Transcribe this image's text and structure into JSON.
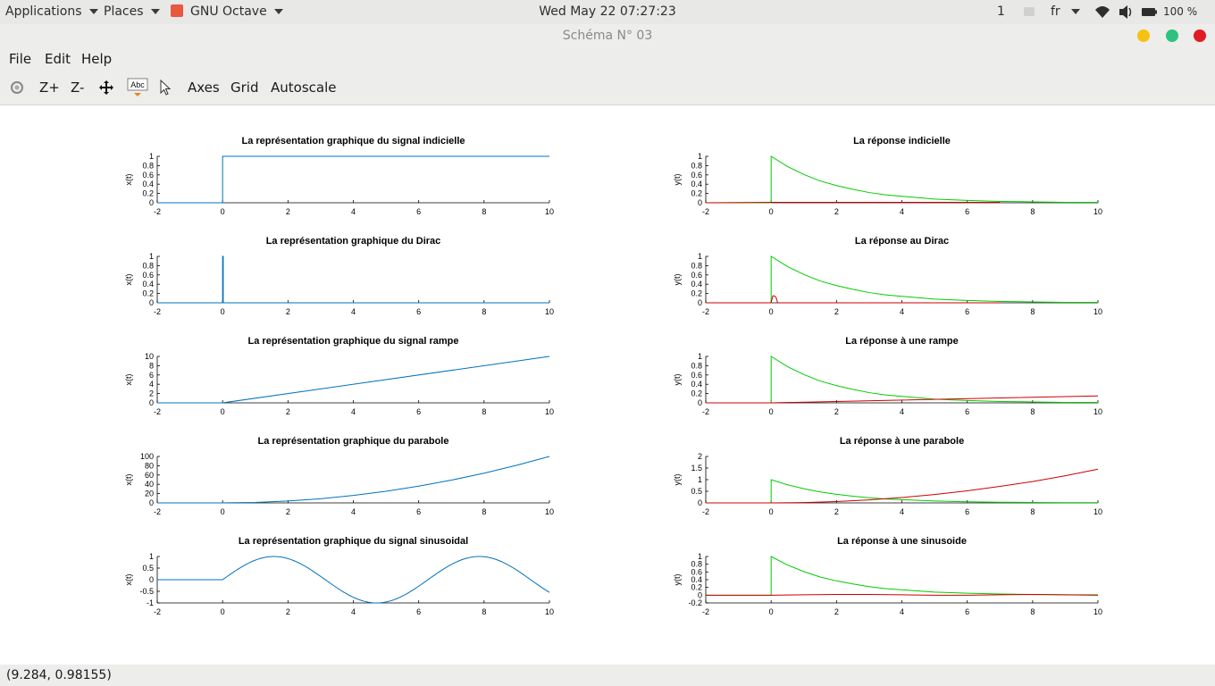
{
  "topbar": {
    "applications": "Applications",
    "places": "Places",
    "app_name": "GNU Octave",
    "app_icon": "octave-icon",
    "clock": "Wed May 22  07:27:23",
    "workspace": "1",
    "language": "fr",
    "battery": "100 %"
  },
  "window": {
    "title": "Schéma N° 03"
  },
  "menu": {
    "file": "File",
    "edit": "Edit",
    "help": "Help"
  },
  "toolbar": {
    "rotate_icon": "rotate-icon",
    "zoom_in": "Z+",
    "zoom_out": "Z-",
    "pan_icon": "pan-icon",
    "text_icon_label": "Abc",
    "select_icon": "pointer-icon",
    "axes": "Axes",
    "grid": "Grid",
    "autoscale": "Autoscale"
  },
  "status": {
    "coords": "(9.284, 0.98155)"
  },
  "colors": {
    "signal": "#0072bd",
    "response_green": "#00cc00",
    "response_red": "#cc0000",
    "overlap": "#999900"
  },
  "chart_data": [
    {
      "type": "line",
      "title": "La représentation graphique du signal indicielle",
      "xlabel": "",
      "ylabel": "x(t)",
      "xlim": [
        -2,
        10
      ],
      "ylim": [
        0,
        1
      ],
      "xticks": [
        "-2",
        "0",
        "2",
        "4",
        "6",
        "8",
        "10"
      ],
      "yticks": [
        "0",
        "0.2",
        "0.4",
        "0.6",
        "0.8",
        "1"
      ],
      "series": [
        {
          "color": "#0072bd",
          "x": [
            -2,
            0,
            0,
            10
          ],
          "y": [
            0,
            0,
            1,
            1
          ]
        }
      ]
    },
    {
      "type": "line",
      "title": "La réponse indicielle",
      "xlabel": "",
      "ylabel": "y(t)",
      "xlim": [
        -2,
        10
      ],
      "ylim": [
        0,
        1
      ],
      "xticks": [
        "-2",
        "0",
        "2",
        "4",
        "6",
        "8",
        "10"
      ],
      "yticks": [
        "0",
        "0.2",
        "0.4",
        "0.6",
        "0.8",
        "1"
      ],
      "series": [
        {
          "color": "#00cc00",
          "x": [
            -2,
            0,
            0,
            0.5,
            1,
            1.5,
            2,
            2.5,
            3,
            3.5,
            4,
            5,
            6,
            7,
            8,
            9,
            10
          ],
          "y": [
            0,
            0,
            1,
            0.78,
            0.61,
            0.47,
            0.37,
            0.29,
            0.22,
            0.17,
            0.14,
            0.08,
            0.05,
            0.03,
            0.02,
            0.01,
            0.01
          ]
        },
        {
          "color": "#cc0000",
          "x": [
            -2,
            0,
            7
          ],
          "y": [
            0,
            0.01,
            0.01
          ]
        }
      ]
    },
    {
      "type": "line",
      "title": "La représentation graphique du Dirac",
      "xlabel": "",
      "ylabel": "x(t)",
      "xlim": [
        -2,
        10
      ],
      "ylim": [
        0,
        1
      ],
      "xticks": [
        "-2",
        "0",
        "2",
        "4",
        "6",
        "8",
        "10"
      ],
      "yticks": [
        "0",
        "0.2",
        "0.4",
        "0.6",
        "0.8",
        "1"
      ],
      "series": [
        {
          "color": "#0072bd",
          "x": [
            -2,
            0,
            0,
            0.02,
            0.02,
            10
          ],
          "y": [
            0,
            0,
            1,
            1,
            0,
            0
          ]
        }
      ]
    },
    {
      "type": "line",
      "title": "La réponse au Dirac",
      "xlabel": "",
      "ylabel": "y(t)",
      "xlim": [
        -2,
        10
      ],
      "ylim": [
        0,
        1
      ],
      "xticks": [
        "-2",
        "0",
        "2",
        "4",
        "6",
        "8",
        "10"
      ],
      "yticks": [
        "0",
        "0.2",
        "0.4",
        "0.6",
        "0.8",
        "1"
      ],
      "series": [
        {
          "color": "#00cc00",
          "x": [
            -2,
            0,
            0,
            0.5,
            1,
            1.5,
            2,
            2.5,
            3,
            3.5,
            4,
            5,
            6,
            7,
            8,
            9,
            10
          ],
          "y": [
            0,
            0,
            1,
            0.78,
            0.61,
            0.47,
            0.37,
            0.29,
            0.22,
            0.17,
            0.14,
            0.08,
            0.05,
            0.03,
            0.02,
            0.01,
            0.01
          ]
        },
        {
          "color": "#cc0000",
          "x": [
            -2,
            0,
            0.05,
            0.1,
            0.15,
            0.2,
            7
          ],
          "y": [
            0,
            0,
            0.15,
            0.15,
            0.12,
            0,
            0
          ]
        }
      ]
    },
    {
      "type": "line",
      "title": "La représentation graphique du signal rampe",
      "xlabel": "",
      "ylabel": "x(t)",
      "xlim": [
        -2,
        10
      ],
      "ylim": [
        0,
        10
      ],
      "xticks": [
        "-2",
        "0",
        "2",
        "4",
        "6",
        "8",
        "10"
      ],
      "yticks": [
        "0",
        "2",
        "4",
        "6",
        "8",
        "10"
      ],
      "series": [
        {
          "color": "#0072bd",
          "x": [
            -2,
            0,
            10
          ],
          "y": [
            0,
            0,
            10
          ]
        }
      ]
    },
    {
      "type": "line",
      "title": "La réponse à une rampe",
      "xlabel": "",
      "ylabel": "y(t)",
      "xlim": [
        -2,
        10
      ],
      "ylim": [
        0,
        1
      ],
      "xticks": [
        "-2",
        "0",
        "2",
        "4",
        "6",
        "8",
        "10"
      ],
      "yticks": [
        "0",
        "0.2",
        "0.4",
        "0.6",
        "0.8",
        "1"
      ],
      "series": [
        {
          "color": "#00cc00",
          "x": [
            -2,
            0,
            0,
            0.5,
            1,
            1.5,
            2,
            2.5,
            3,
            3.5,
            4,
            5,
            6,
            7,
            8,
            9,
            10
          ],
          "y": [
            0,
            0,
            1,
            0.78,
            0.61,
            0.47,
            0.37,
            0.29,
            0.22,
            0.17,
            0.14,
            0.08,
            0.05,
            0.03,
            0.02,
            0.01,
            0.01
          ]
        },
        {
          "color": "#cc0000",
          "x": [
            -2,
            0,
            10
          ],
          "y": [
            0,
            0,
            0.15
          ]
        }
      ]
    },
    {
      "type": "line",
      "title": "La représentation graphique du parabole",
      "xlabel": "",
      "ylabel": "x(t)",
      "xlim": [
        -2,
        10
      ],
      "ylim": [
        0,
        100
      ],
      "xticks": [
        "-2",
        "0",
        "2",
        "4",
        "6",
        "8",
        "10"
      ],
      "yticks": [
        "0",
        "20",
        "40",
        "60",
        "80",
        "100"
      ],
      "series": [
        {
          "color": "#0072bd",
          "x": [
            -2,
            0,
            1,
            2,
            3,
            4,
            5,
            6,
            7,
            8,
            9,
            10
          ],
          "y": [
            0,
            0,
            1,
            4,
            9,
            16,
            25,
            36,
            49,
            64,
            81,
            100
          ]
        }
      ]
    },
    {
      "type": "line",
      "title": "La réponse à une parabole",
      "xlabel": "",
      "ylabel": "y(t)",
      "xlim": [
        -2,
        10
      ],
      "ylim": [
        0,
        2
      ],
      "xticks": [
        "-2",
        "0",
        "2",
        "4",
        "6",
        "8",
        "10"
      ],
      "yticks": [
        "0",
        "0.5",
        "1",
        "1.5",
        "2"
      ],
      "series": [
        {
          "color": "#00cc00",
          "x": [
            -2,
            0,
            0,
            0.5,
            1,
            1.5,
            2,
            2.5,
            3,
            3.5,
            4,
            5,
            6,
            7,
            8,
            9,
            10
          ],
          "y": [
            0,
            0,
            1,
            0.78,
            0.61,
            0.47,
            0.37,
            0.29,
            0.22,
            0.17,
            0.14,
            0.08,
            0.05,
            0.03,
            0.02,
            0.01,
            0.01
          ]
        },
        {
          "color": "#cc0000",
          "x": [
            -2,
            0,
            1,
            2,
            3,
            4,
            5,
            6,
            7,
            8,
            9,
            10
          ],
          "y": [
            0,
            0,
            0.015,
            0.06,
            0.13,
            0.23,
            0.36,
            0.52,
            0.71,
            0.92,
            1.17,
            1.45
          ]
        }
      ]
    },
    {
      "type": "line",
      "title": "La représentation graphique du signal sinusoidal",
      "xlabel": "",
      "ylabel": "x(t)",
      "xlim": [
        -2,
        10
      ],
      "ylim": [
        -1,
        1
      ],
      "xticks": [
        "-2",
        "0",
        "2",
        "4",
        "6",
        "8",
        "10"
      ],
      "yticks": [
        "-1",
        "-0.5",
        "0",
        "0.5",
        "1"
      ],
      "series": [
        {
          "color": "#0072bd",
          "function": "sin",
          "x": [
            -2,
            0,
            10
          ],
          "y": [
            0,
            0,
            -0.54
          ]
        }
      ]
    },
    {
      "type": "line",
      "title": "La réponse à une sinusoide",
      "xlabel": "",
      "ylabel": "y(t)",
      "xlim": [
        -2,
        10
      ],
      "ylim": [
        -0.2,
        1
      ],
      "xticks": [
        "-2",
        "0",
        "2",
        "4",
        "6",
        "8",
        "10"
      ],
      "yticks": [
        "-0.2",
        "0",
        "0.2",
        "0.4",
        "0.6",
        "0.8",
        "1"
      ],
      "series": [
        {
          "color": "#00cc00",
          "x": [
            -2,
            0,
            0,
            0.5,
            1,
            1.5,
            2,
            2.5,
            3,
            3.5,
            4,
            5,
            6,
            7,
            8,
            9,
            10
          ],
          "y": [
            0,
            0,
            1,
            0.78,
            0.61,
            0.47,
            0.37,
            0.29,
            0.22,
            0.17,
            0.14,
            0.08,
            0.05,
            0.03,
            0.02,
            0.01,
            0.01
          ]
        },
        {
          "color": "#cc0000",
          "x": [
            -2,
            0,
            1,
            2,
            3,
            4,
            5,
            6,
            7,
            8,
            9,
            10
          ],
          "y": [
            0,
            0,
            0.01,
            0.02,
            0.02,
            0.01,
            0.0,
            0.0,
            0.01,
            0.02,
            0.01,
            0.0
          ]
        }
      ]
    }
  ]
}
